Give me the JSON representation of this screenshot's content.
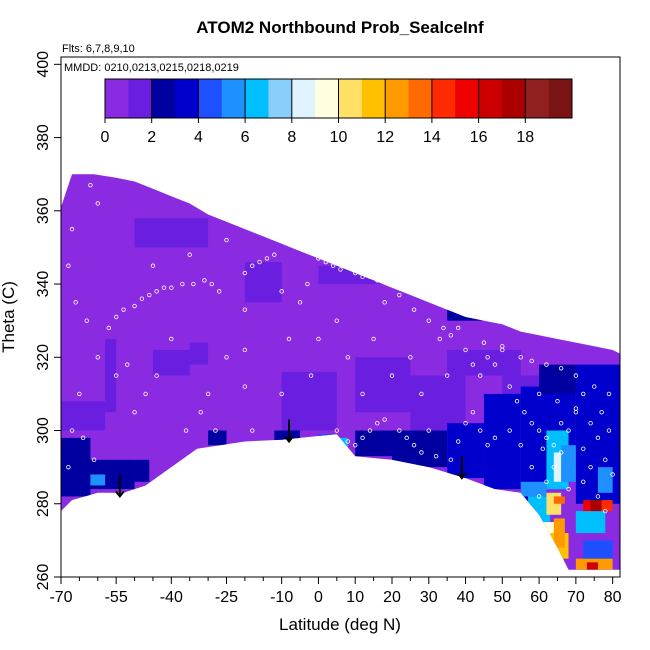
{
  "chart_data": {
    "type": "heatmap",
    "title": "ATOM2 Northbound Prob_SealceInf",
    "subtitle_flts": "Flts: 6,7,8,9,10",
    "subtitle_mmdd": "MMDD: 0210,0213,0215,0218,0219",
    "xlabel": "Latitude (deg N)",
    "ylabel": "Theta (C)",
    "xlim": [
      -70,
      82
    ],
    "ylim": [
      260,
      402
    ],
    "x_ticks": [
      -70,
      -55,
      -40,
      -25,
      -10,
      0,
      10,
      20,
      30,
      40,
      50,
      60,
      70,
      80
    ],
    "x_minor_ticks": [
      -65,
      -60,
      -50,
      -45,
      -35,
      -30,
      -20,
      -15,
      -5,
      5,
      15,
      25,
      35,
      45,
      55,
      65,
      75
    ],
    "y_ticks": [
      260,
      280,
      300,
      320,
      340,
      360,
      380,
      400
    ],
    "colorbar": {
      "min": 0,
      "max": 20,
      "ticks": [
        0,
        2,
        4,
        6,
        8,
        10,
        12,
        14,
        16,
        18
      ],
      "colors": [
        "#8a2be2",
        "#6a1fe0",
        "#0000a0",
        "#0000cd",
        "#1e50ff",
        "#1e90ff",
        "#00bfff",
        "#87cefa",
        "#e0f4ff",
        "#ffffe0",
        "#ffe066",
        "#ffc000",
        "#ff9a00",
        "#ff6a00",
        "#ff2a00",
        "#ee0000",
        "#cc0000",
        "#aa0000",
        "#902020",
        "#7a1414"
      ]
    },
    "background_color": "#8a2be2",
    "lower_boundary": [
      [
        -70,
        278
      ],
      [
        -67,
        281
      ],
      [
        -60,
        283
      ],
      [
        -53,
        283
      ],
      [
        -47,
        285
      ],
      [
        -40,
        290
      ],
      [
        -33,
        295
      ],
      [
        -20,
        297
      ],
      [
        -10,
        297.5
      ],
      [
        0,
        298.5
      ],
      [
        5,
        299
      ],
      [
        10,
        293
      ],
      [
        20,
        292
      ],
      [
        30,
        290
      ],
      [
        40,
        287
      ],
      [
        48,
        284
      ],
      [
        55,
        283
      ],
      [
        60,
        277
      ],
      [
        65,
        268
      ],
      [
        68,
        262
      ],
      [
        75,
        262
      ],
      [
        80,
        262
      ],
      [
        82,
        262
      ]
    ],
    "upper_boundary": [
      [
        -70,
        361
      ],
      [
        -67,
        370
      ],
      [
        -61,
        370
      ],
      [
        -55,
        369
      ],
      [
        -50,
        368
      ],
      [
        -45,
        366
      ],
      [
        -40,
        364
      ],
      [
        -35,
        362
      ],
      [
        -30,
        359
      ],
      [
        -25,
        357
      ],
      [
        -20,
        355
      ],
      [
        -15,
        353
      ],
      [
        -10,
        351
      ],
      [
        -5,
        349
      ],
      [
        0,
        347
      ],
      [
        5,
        345
      ],
      [
        10,
        343
      ],
      [
        15,
        341
      ],
      [
        20,
        339
      ],
      [
        25,
        337
      ],
      [
        30,
        335
      ],
      [
        35,
        333
      ],
      [
        40,
        331
      ],
      [
        45,
        330
      ],
      [
        50,
        329
      ],
      [
        55,
        327
      ],
      [
        60,
        326
      ],
      [
        65,
        325
      ],
      [
        70,
        324
      ],
      [
        75,
        323
      ],
      [
        80,
        322
      ],
      [
        82,
        321
      ]
    ],
    "arrows": [
      {
        "x": -54,
        "y_start": 288,
        "y_end": 282
      },
      {
        "x": -8,
        "y_start": 303,
        "y_end": 297
      },
      {
        "x": 39,
        "y_start": 293,
        "y_end": 287
      }
    ],
    "patches": [
      {
        "lat": [
          -70,
          -58
        ],
        "theta": [
          300,
          308
        ],
        "value": 1
      },
      {
        "lat": [
          -58,
          -55
        ],
        "theta": [
          305,
          325
        ],
        "value": 1.5
      },
      {
        "lat": [
          -45,
          -35
        ],
        "theta": [
          315,
          322
        ],
        "value": 1.5
      },
      {
        "lat": [
          -35,
          -30
        ],
        "theta": [
          318,
          324
        ],
        "value": 1.5
      },
      {
        "lat": [
          -10,
          5
        ],
        "theta": [
          300,
          316
        ],
        "value": 1.5
      },
      {
        "lat": [
          0,
          20
        ],
        "theta": [
          340,
          345
        ],
        "value": 1.5
      },
      {
        "lat": [
          10,
          25
        ],
        "theta": [
          305,
          320
        ],
        "value": 1.5
      },
      {
        "lat": [
          25,
          40
        ],
        "theta": [
          300,
          315
        ],
        "value": 1.2
      },
      {
        "lat": [
          35,
          55
        ],
        "theta": [
          315,
          322
        ],
        "value": 1.2
      },
      {
        "lat": [
          50,
          60
        ],
        "theta": [
          300,
          315
        ],
        "value": 1.5
      },
      {
        "lat": [
          -20,
          -10
        ],
        "theta": [
          335,
          346
        ],
        "value": 1.3
      },
      {
        "lat": [
          -50,
          -30
        ],
        "theta": [
          350,
          358
        ],
        "value": 1.3
      },
      {
        "lat": [
          -70,
          -62
        ],
        "theta": [
          282,
          298
        ],
        "value": 2
      },
      {
        "lat": [
          -62,
          -50
        ],
        "theta": [
          284,
          292
        ],
        "value": 2.5
      },
      {
        "lat": [
          -50,
          -46
        ],
        "theta": [
          286,
          292
        ],
        "value": 2
      },
      {
        "lat": [
          -30,
          -25
        ],
        "theta": [
          296,
          300
        ],
        "value": 2
      },
      {
        "lat": [
          -12,
          -5
        ],
        "theta": [
          297,
          300
        ],
        "value": 2
      },
      {
        "lat": [
          10,
          22
        ],
        "theta": [
          293,
          300
        ],
        "value": 2.2
      },
      {
        "lat": [
          20,
          35
        ],
        "theta": [
          290,
          300
        ],
        "value": 2.5
      },
      {
        "lat": [
          35,
          45
        ],
        "theta": [
          287,
          302
        ],
        "value": 3
      },
      {
        "lat": [
          45,
          55
        ],
        "theta": [
          284,
          310
        ],
        "value": 3
      },
      {
        "lat": [
          55,
          62
        ],
        "theta": [
          278,
          312
        ],
        "value": 3.5
      },
      {
        "lat": [
          62,
          70
        ],
        "theta": [
          290,
          315
        ],
        "value": 3.5
      },
      {
        "lat": [
          70,
          82
        ],
        "theta": [
          280,
          318
        ],
        "value": 3
      },
      {
        "lat": [
          35,
          48
        ],
        "theta": [
          330,
          334
        ],
        "value": 2
      },
      {
        "lat": [
          60,
          70
        ],
        "theta": [
          310,
          318
        ],
        "value": 2.5
      },
      {
        "lat": [
          5,
          8
        ],
        "theta": [
          295,
          298
        ],
        "value": 6
      },
      {
        "lat": [
          0,
          5
        ],
        "theta": [
          296,
          299
        ],
        "value": 4
      },
      {
        "lat": [
          -62,
          -58
        ],
        "theta": [
          285,
          288
        ],
        "value": 5
      },
      {
        "lat": [
          55,
          62
        ],
        "theta": [
          282,
          286
        ],
        "value": 5
      },
      {
        "lat": [
          62,
          68
        ],
        "theta": [
          284,
          300
        ],
        "value": 6
      },
      {
        "lat": [
          64,
          66
        ],
        "theta": [
          286,
          294
        ],
        "value": 8
      },
      {
        "lat": [
          66,
          70
        ],
        "theta": [
          286,
          296
        ],
        "value": 5
      },
      {
        "lat": [
          57,
          63
        ],
        "theta": [
          272,
          282
        ],
        "value": 6
      },
      {
        "lat": [
          60,
          65
        ],
        "theta": [
          266,
          275
        ],
        "value": 9
      },
      {
        "lat": [
          63,
          68
        ],
        "theta": [
          265,
          272
        ],
        "value": 11
      },
      {
        "lat": [
          64,
          67
        ],
        "theta": [
          268,
          276
        ],
        "value": 12
      },
      {
        "lat": [
          62,
          66
        ],
        "theta": [
          277,
          283
        ],
        "value": 10
      },
      {
        "lat": [
          64,
          67
        ],
        "theta": [
          280,
          282
        ],
        "value": 13
      },
      {
        "lat": [
          70,
          78
        ],
        "theta": [
          272,
          278
        ],
        "value": 6
      },
      {
        "lat": [
          72,
          80
        ],
        "theta": [
          264,
          270
        ],
        "value": 4
      },
      {
        "lat": [
          70,
          80
        ],
        "theta": [
          262,
          265
        ],
        "value": 12
      },
      {
        "lat": [
          73,
          76
        ],
        "theta": [
          262,
          264
        ],
        "value": 16
      },
      {
        "lat": [
          72,
          74
        ],
        "theta": [
          278,
          281
        ],
        "value": 15
      },
      {
        "lat": [
          74,
          77
        ],
        "theta": [
          278,
          281
        ],
        "value": 17
      },
      {
        "lat": [
          77,
          80
        ],
        "theta": [
          278,
          281
        ],
        "value": 14
      },
      {
        "lat": [
          76,
          80
        ],
        "theta": [
          283,
          290
        ],
        "value": 5
      }
    ],
    "scatter_points": [
      [
        -62,
        367
      ],
      [
        -60,
        362
      ],
      [
        -67,
        355
      ],
      [
        -68,
        345
      ],
      [
        -66,
        335
      ],
      [
        -63,
        330
      ],
      [
        -57,
        328
      ],
      [
        -55,
        331
      ],
      [
        -53,
        333
      ],
      [
        -50,
        334
      ],
      [
        -48,
        336
      ],
      [
        -46,
        337
      ],
      [
        -44,
        338
      ],
      [
        -42,
        339
      ],
      [
        -40,
        339
      ],
      [
        -37,
        340
      ],
      [
        -34,
        340
      ],
      [
        -31,
        341
      ],
      [
        -29,
        340
      ],
      [
        -27,
        338
      ],
      [
        -20,
        343
      ],
      [
        -18,
        345
      ],
      [
        -16,
        346
      ],
      [
        -14,
        347
      ],
      [
        -12,
        348
      ],
      [
        -20,
        333
      ],
      [
        -20,
        322
      ],
      [
        -20,
        312
      ],
      [
        -18,
        300
      ],
      [
        -21,
        295
      ],
      [
        -28,
        300
      ],
      [
        -30,
        310
      ],
      [
        -25,
        320
      ],
      [
        -10,
        310
      ],
      [
        -8,
        325
      ],
      [
        -5,
        335
      ],
      [
        -3,
        340
      ],
      [
        5,
        330
      ],
      [
        8,
        320
      ],
      [
        12,
        310
      ],
      [
        15,
        325
      ],
      [
        18,
        335
      ],
      [
        20,
        340
      ],
      [
        25,
        320
      ],
      [
        28,
        310
      ],
      [
        30,
        300
      ],
      [
        33,
        325
      ],
      [
        -60,
        320
      ],
      [
        -65,
        310
      ],
      [
        -67,
        300
      ],
      [
        -64,
        298
      ],
      [
        -61,
        292
      ],
      [
        -68,
        290
      ],
      [
        -55,
        315
      ],
      [
        -52,
        318
      ],
      [
        -50,
        305
      ],
      [
        -47,
        310
      ],
      [
        -44,
        315
      ],
      [
        -40,
        325
      ],
      [
        -36,
        300
      ],
      [
        -32,
        305
      ],
      [
        38,
        328
      ],
      [
        40,
        322
      ],
      [
        42,
        318
      ],
      [
        44,
        315
      ],
      [
        46,
        320
      ],
      [
        48,
        318
      ],
      [
        50,
        322
      ],
      [
        52,
        312
      ],
      [
        54,
        308
      ],
      [
        56,
        305
      ],
      [
        58,
        302
      ],
      [
        60,
        300
      ],
      [
        62,
        298
      ],
      [
        64,
        296
      ],
      [
        66,
        294
      ],
      [
        68,
        300
      ],
      [
        70,
        305
      ],
      [
        72,
        310
      ],
      [
        74,
        302
      ],
      [
        76,
        298
      ],
      [
        78,
        292
      ],
      [
        80,
        288
      ],
      [
        64,
        290
      ],
      [
        62,
        286
      ],
      [
        60,
        282
      ],
      [
        68,
        284
      ],
      [
        72,
        286
      ],
      [
        74,
        290
      ],
      [
        76,
        282
      ],
      [
        78,
        278
      ],
      [
        5,
        300
      ],
      [
        8,
        297
      ],
      [
        10,
        296
      ],
      [
        12,
        298
      ],
      [
        14,
        300
      ],
      [
        16,
        302
      ],
      [
        18,
        303
      ],
      [
        22,
        300
      ],
      [
        24,
        298
      ],
      [
        26,
        296
      ],
      [
        28,
        294
      ],
      [
        32,
        293
      ],
      [
        36,
        292
      ],
      [
        38,
        297
      ],
      [
        40,
        302
      ],
      [
        42,
        305
      ],
      [
        44,
        300
      ],
      [
        46,
        296
      ],
      [
        48,
        298
      ],
      [
        52,
        300
      ],
      [
        55,
        296
      ],
      [
        0,
        347
      ],
      [
        2,
        346
      ],
      [
        4,
        345
      ],
      [
        6,
        344
      ],
      [
        10,
        343
      ],
      [
        12,
        342
      ],
      [
        14,
        342
      ],
      [
        16,
        341
      ],
      [
        22,
        337
      ],
      [
        26,
        333
      ],
      [
        30,
        330
      ],
      [
        34,
        328
      ],
      [
        36,
        326
      ],
      [
        45,
        324
      ],
      [
        50,
        323
      ],
      [
        55,
        320
      ],
      [
        58,
        319
      ],
      [
        62,
        318
      ],
      [
        66,
        317
      ],
      [
        70,
        315
      ],
      [
        75,
        312
      ],
      [
        79,
        310
      ],
      [
        60,
        310
      ],
      [
        65,
        308
      ],
      [
        70,
        306
      ],
      [
        -45,
        345
      ],
      [
        -35,
        348
      ],
      [
        -25,
        352
      ],
      [
        -10,
        338
      ],
      [
        0,
        325
      ],
      [
        -2,
        315
      ],
      [
        20,
        315
      ],
      [
        35,
        315
      ],
      [
        58,
        290
      ],
      [
        72,
        295
      ],
      [
        77,
        305
      ],
      [
        61,
        295
      ],
      [
        79,
        300
      ],
      [
        66,
        302
      ]
    ]
  }
}
